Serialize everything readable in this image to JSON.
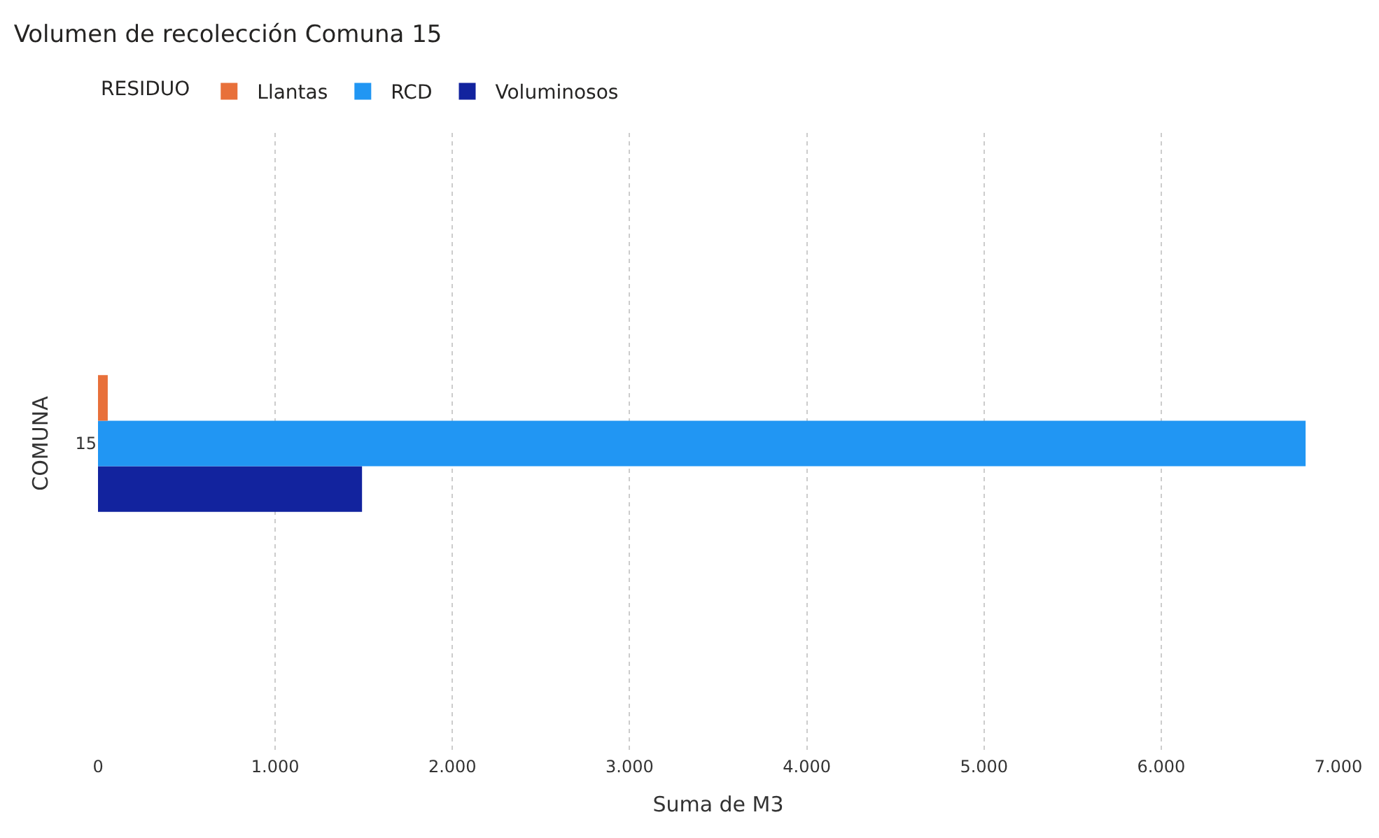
{
  "chart_data": {
    "type": "bar",
    "orientation": "horizontal",
    "title": "Volumen de recolección Comuna 15",
    "legend_title": "RESIDUO",
    "xlabel": "Suma de M3",
    "ylabel": "COMUNA",
    "categories": [
      "15"
    ],
    "series": [
      {
        "name": "Llantas",
        "color": "#e8703a",
        "values": [
          55
        ]
      },
      {
        "name": "RCD",
        "color": "#2196f3",
        "values": [
          6815
        ]
      },
      {
        "name": "Voluminosos",
        "color": "#12239e",
        "values": [
          1490
        ]
      }
    ],
    "xlim": [
      0,
      7000
    ],
    "xticks": [
      0,
      {
        "value": 1000,
        "label": "1.000"
      },
      {
        "value": 2000,
        "label": "2.000"
      },
      {
        "value": 3000,
        "label": "3.000"
      },
      {
        "value": 4000,
        "label": "4.000"
      },
      {
        "value": 5000,
        "label": "5.000"
      },
      {
        "value": 6000,
        "label": "6.000"
      },
      {
        "value": 7000,
        "label": "7.000"
      }
    ],
    "grid": "x",
    "legend": "top left"
  }
}
